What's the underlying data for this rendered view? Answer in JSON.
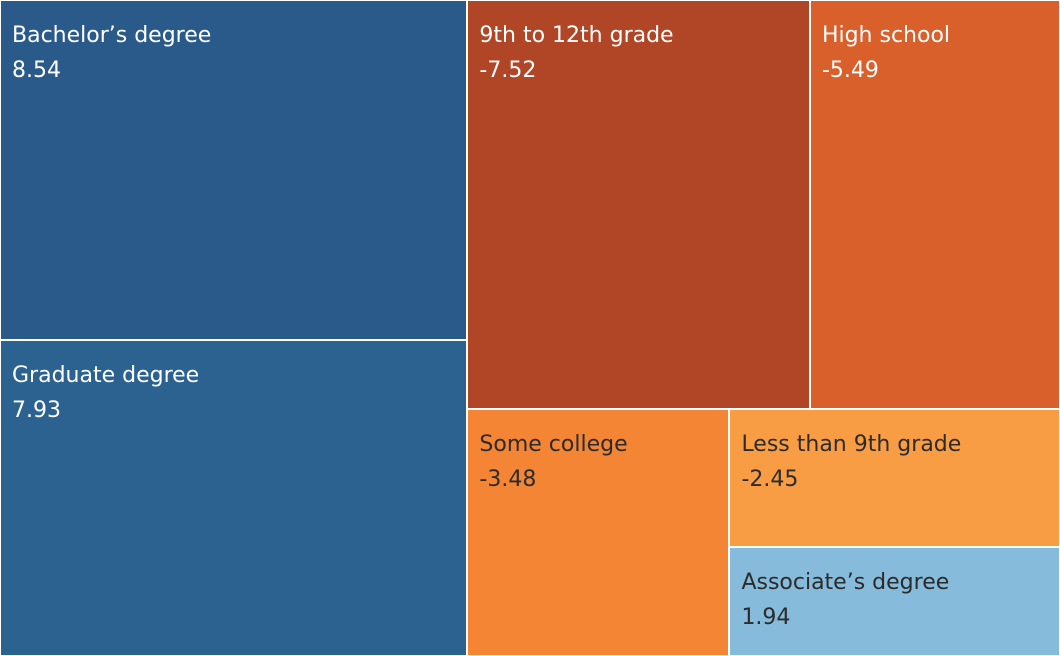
{
  "chart_data": {
    "type": "treemap",
    "items": [
      {
        "label": "Bachelor’s degree",
        "value": "8.54",
        "color": "#2a5a89",
        "text_color": "#ffffff"
      },
      {
        "label": "Graduate degree",
        "value": "7.93",
        "color": "#2c628f",
        "text_color": "#ffffff"
      },
      {
        "label": "9th to 12th grade",
        "value": "-7.52",
        "color": "#b04626",
        "text_color": "#ffffff"
      },
      {
        "label": "High school",
        "value": "-5.49",
        "color": "#d95f2b",
        "text_color": "#ffffff"
      },
      {
        "label": "Some college",
        "value": "-3.48",
        "color": "#f38535",
        "text_color": "#2b2b2b"
      },
      {
        "label": "Less than 9th grade",
        "value": "-2.45",
        "color": "#f99d45",
        "text_color": "#2b2b2b"
      },
      {
        "label": "Associate’s degree",
        "value": "1.94",
        "color": "#86bbdb",
        "text_color": "#2b2b2b"
      }
    ]
  }
}
